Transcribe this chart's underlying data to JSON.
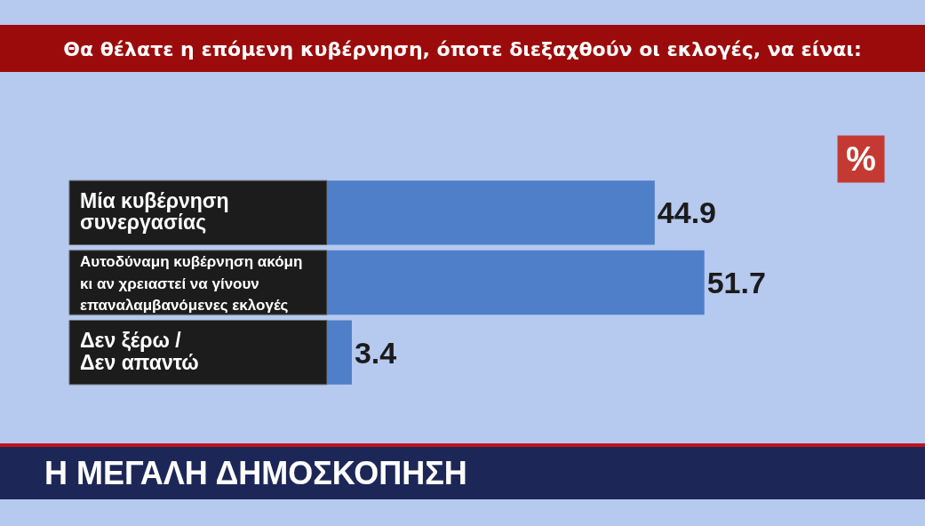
{
  "chart_data": {
    "type": "bar",
    "orientation": "horizontal",
    "title": "Θα θέλατε η επόμενη κυβέρνηση, όποτε διεξαχθούν οι εκλογές, να είναι:",
    "categories": [
      "Μία κυβέρνηση συνεργασίας",
      "Αυτοδύναμη κυβέρνηση ακόμη κι αν χρειαστεί να γίνουν επαναλαμβανόμενες εκλογές",
      "Δεν ξέρω / Δεν απαντώ"
    ],
    "values": [
      44.9,
      51.7,
      3.4
    ],
    "color": "#4f7fc8",
    "data_labels": true,
    "tick_labels": "y",
    "annotations": [
      "%",
      "Η ΜΕΓΑΛΗ ΔΗΜΟΣΚΟΠΗΣΗ"
    ]
  }
}
